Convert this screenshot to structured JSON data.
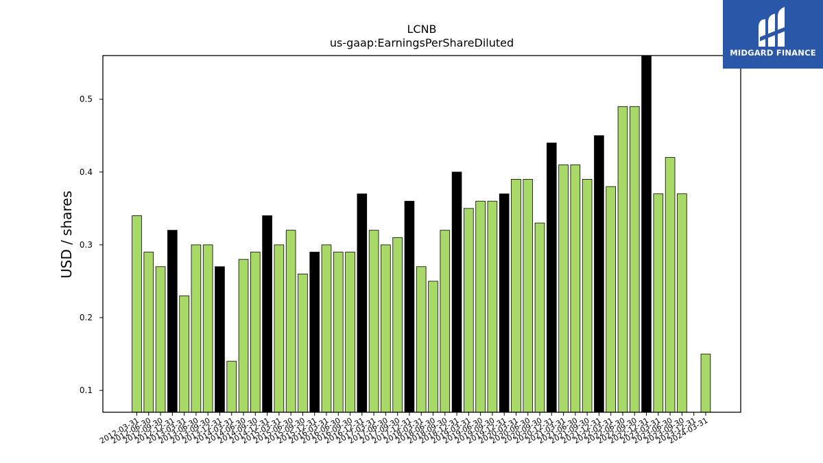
{
  "brand": {
    "name": "MIDGARD FINANCE",
    "bg_color": "#2b57a8"
  },
  "chart_data": {
    "type": "bar",
    "title": "LCNB",
    "subtitle": "us-gaap:EarningsPerShareDiluted",
    "xlabel": "",
    "ylabel": "USD / shares",
    "ylim": [
      0.07,
      0.56
    ],
    "yticks": [
      0.1,
      0.2,
      0.3,
      0.4,
      0.5
    ],
    "grid": false,
    "colors": {
      "quarter": "#a8d868",
      "year_end": "#000000",
      "edge": "#000000"
    },
    "categories": [
      "2012-03-31",
      "2012-06-30",
      "2012-09-30",
      "2012-12-31",
      "2013-03-31",
      "2013-06-30",
      "2013-09-30",
      "2013-12-31",
      "2014-03-31",
      "2014-06-30",
      "2014-09-30",
      "2014-12-31",
      "2015-03-31",
      "2015-06-30",
      "2015-09-30",
      "2015-12-31",
      "2016-03-31",
      "2016-06-30",
      "2016-09-30",
      "2016-12-31",
      "2017-03-31",
      "2017-06-30",
      "2017-09-30",
      "2017-12-31",
      "2018-03-31",
      "2018-06-30",
      "2018-09-30",
      "2018-12-31",
      "2019-03-31",
      "2019-06-30",
      "2019-09-30",
      "2019-12-31",
      "2020-03-31",
      "2020-06-30",
      "2020-09-30",
      "2020-12-31",
      "2021-03-31",
      "2021-06-30",
      "2021-09-30",
      "2021-12-31",
      "2022-03-31",
      "2022-06-30",
      "2022-09-30",
      "2022-12-31",
      "2023-03-31",
      "2023-06-30",
      "2023-09-30",
      "2023-12-31",
      "2024-03-31"
    ],
    "values": [
      0.34,
      0.29,
      0.27,
      0.32,
      0.23,
      0.3,
      0.3,
      0.27,
      0.14,
      0.28,
      0.29,
      0.34,
      0.3,
      0.32,
      0.26,
      0.29,
      0.3,
      0.29,
      0.29,
      0.37,
      0.32,
      0.3,
      0.31,
      0.36,
      0.27,
      0.25,
      0.32,
      0.4,
      0.35,
      0.36,
      0.36,
      0.37,
      0.39,
      0.39,
      0.33,
      0.44,
      0.41,
      0.41,
      0.39,
      0.45,
      0.38,
      0.49,
      0.49,
      0.56,
      0.37,
      0.42,
      0.37,
      null,
      0.15
    ],
    "year_end_flags": [
      false,
      false,
      false,
      true,
      false,
      false,
      false,
      true,
      false,
      false,
      false,
      true,
      false,
      false,
      false,
      true,
      false,
      false,
      false,
      true,
      false,
      false,
      false,
      true,
      false,
      false,
      false,
      true,
      false,
      false,
      false,
      true,
      false,
      false,
      false,
      true,
      false,
      false,
      false,
      true,
      false,
      false,
      false,
      true,
      false,
      false,
      false,
      true,
      false
    ]
  }
}
